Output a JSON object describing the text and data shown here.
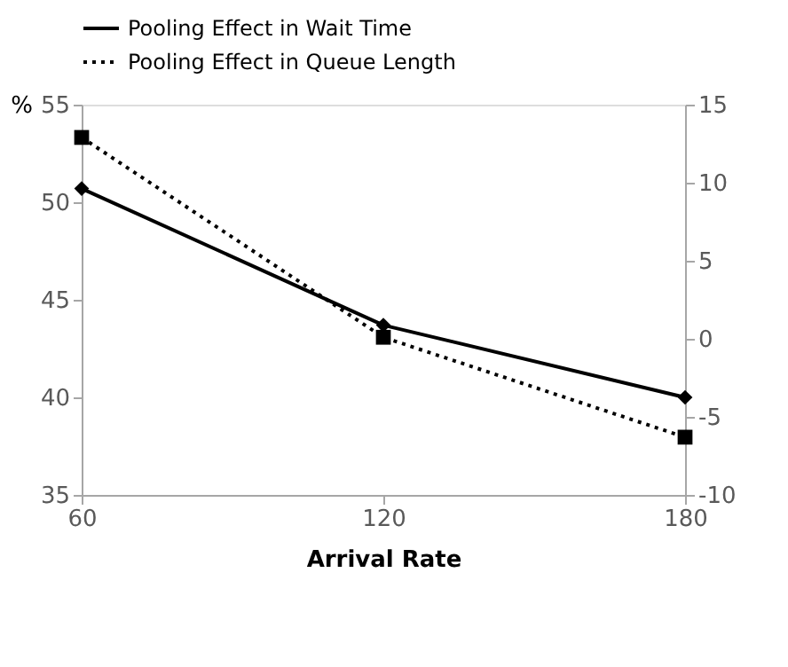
{
  "chart_data": {
    "type": "line",
    "xlabel": "Arrival Rate",
    "ylabel": "%",
    "x": [
      60,
      120,
      180
    ],
    "xlim": [
      60,
      180
    ],
    "xticks": [
      60,
      120,
      180
    ],
    "ylim": [
      35,
      55
    ],
    "yticks": [
      35,
      40,
      45,
      50,
      55
    ],
    "y2lim": [
      -10,
      15
    ],
    "y2ticks": [
      -10,
      -5,
      0,
      5,
      10,
      15
    ],
    "grid": false,
    "legend": "top",
    "series": [
      {
        "name": "Pooling Effect in Wait Time",
        "color": "#000000",
        "values": [
          50.7,
          43.7,
          40.0
        ],
        "marker": "diamond",
        "line_style": "solid"
      },
      {
        "name": "Pooling Effect in Queue Length",
        "color": "#000000",
        "values": [
          12.9,
          0.1,
          -6.3
        ],
        "axis": "y2",
        "marker": "square",
        "line_style": "dotted"
      }
    ]
  }
}
